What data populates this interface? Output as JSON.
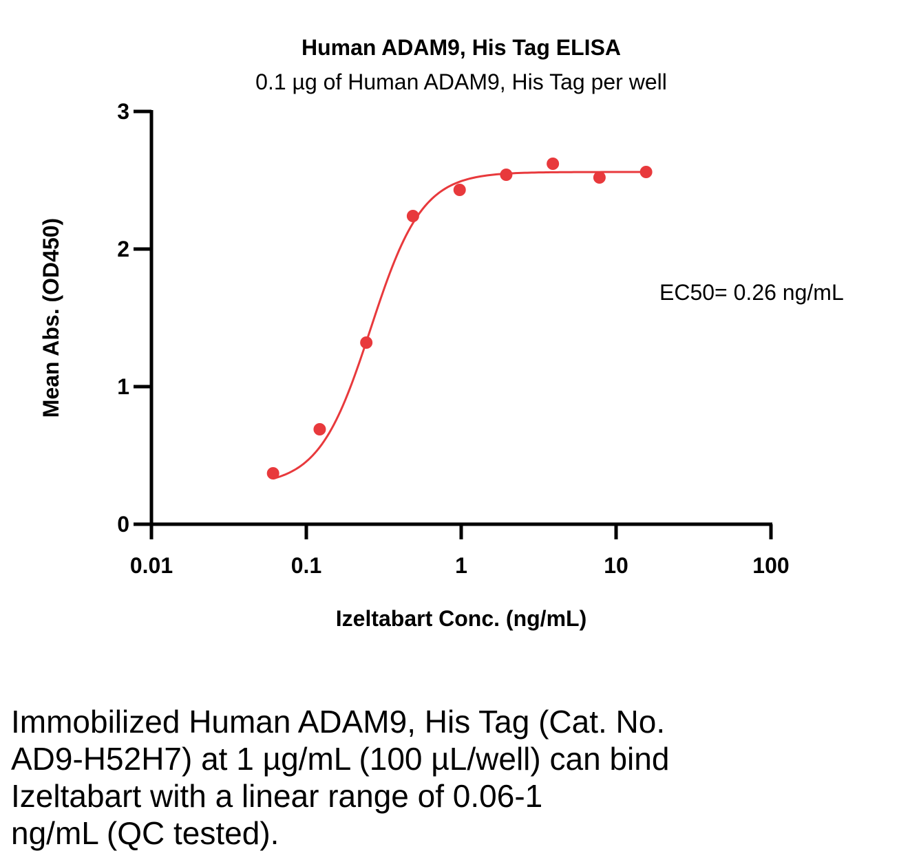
{
  "chart_data": {
    "type": "scatter",
    "title": "Human ADAM9, His Tag ELISA",
    "subtitle": "0.1 µg of Human ADAM9, His Tag per well",
    "xlabel": "Izeltabart Conc. (ng/mL)",
    "ylabel": "Mean Abs. (OD450)",
    "xscale": "log",
    "xlim": [
      0.01,
      100
    ],
    "ylim": [
      0,
      3
    ],
    "x_ticks": [
      "0.01",
      "0.1",
      "1",
      "10",
      "100"
    ],
    "y_ticks": [
      "0",
      "1",
      "2",
      "3"
    ],
    "grid": false,
    "color": "#e8393c",
    "annotation": "EC50= 0.26 ng/mL",
    "series": [
      {
        "x": [
          0.061,
          0.122,
          0.244,
          0.488,
          0.977,
          1.953,
          3.906,
          7.813,
          15.625
        ],
        "y": [
          0.37,
          0.69,
          1.32,
          2.24,
          2.43,
          2.54,
          2.62,
          2.52,
          2.56
        ]
      }
    ],
    "fit": {
      "bottom": 0.28,
      "top": 2.56,
      "ec50": 0.26,
      "hill": 2.6
    }
  },
  "caption": [
    "Immobilized Human ADAM9, His Tag (Cat. No.",
    "AD9-H52H7) at 1 µg/mL (100 µL/well) can bind",
    "Izeltabart with a linear range of 0.06-1",
    "ng/mL (QC tested)."
  ]
}
